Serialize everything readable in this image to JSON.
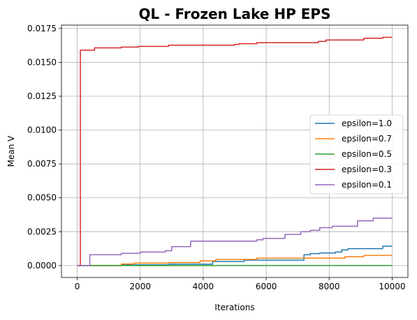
{
  "chart_data": {
    "type": "line",
    "step": true,
    "title": "QL - Frozen Lake HP EPS",
    "xlabel": "Iterations",
    "ylabel": "Mean V",
    "xlim": [
      -500,
      10500
    ],
    "ylim": [
      -0.00088,
      0.01775
    ],
    "xticks": [
      0,
      2000,
      4000,
      6000,
      8000,
      10000
    ],
    "xtick_labels": [
      "0",
      "2000",
      "4000",
      "6000",
      "8000",
      "10000"
    ],
    "yticks": [
      0.0,
      0.0025,
      0.005,
      0.0075,
      0.01,
      0.0125,
      0.015,
      0.0175
    ],
    "ytick_labels": [
      "0.0000",
      "0.0025",
      "0.0050",
      "0.0075",
      "0.0100",
      "0.0125",
      "0.0150",
      "0.0175"
    ],
    "grid": true,
    "legend_position": "center-right",
    "series": [
      {
        "name": "epsilon=1.0",
        "color": "#1f77b4",
        "points": [
          [
            0,
            0
          ],
          [
            1400,
            0
          ],
          [
            1400,
            5e-05
          ],
          [
            2900,
            5e-05
          ],
          [
            2900,
            0.0001
          ],
          [
            4300,
            0.0001
          ],
          [
            4300,
            0.0003
          ],
          [
            5300,
            0.0003
          ],
          [
            5300,
            0.0004
          ],
          [
            7200,
            0.0004
          ],
          [
            7200,
            0.0008
          ],
          [
            7400,
            0.0008
          ],
          [
            7400,
            0.00088
          ],
          [
            7700,
            0.00088
          ],
          [
            7700,
            0.00093
          ],
          [
            8200,
            0.00093
          ],
          [
            8200,
            0.001
          ],
          [
            8400,
            0.001
          ],
          [
            8400,
            0.00115
          ],
          [
            8600,
            0.00115
          ],
          [
            8600,
            0.00125
          ],
          [
            9700,
            0.00125
          ],
          [
            9700,
            0.00143
          ],
          [
            10000,
            0.00143
          ]
        ]
      },
      {
        "name": "epsilon=0.7",
        "color": "#ff7f0e",
        "points": [
          [
            0,
            0
          ],
          [
            1400,
            0
          ],
          [
            1400,
            0.00012
          ],
          [
            1800,
            0.00012
          ],
          [
            1800,
            0.00018
          ],
          [
            2900,
            0.00018
          ],
          [
            2900,
            0.00022
          ],
          [
            3900,
            0.00022
          ],
          [
            3900,
            0.00035
          ],
          [
            4400,
            0.00035
          ],
          [
            4400,
            0.00045
          ],
          [
            5700,
            0.00045
          ],
          [
            5700,
            0.00055
          ],
          [
            8500,
            0.00055
          ],
          [
            8500,
            0.00065
          ],
          [
            9100,
            0.00065
          ],
          [
            9100,
            0.00075
          ],
          [
            10000,
            0.00075
          ]
        ]
      },
      {
        "name": "epsilon=0.5",
        "color": "#2ca02c",
        "points": [
          [
            0,
            0
          ],
          [
            10000,
            0
          ]
        ]
      },
      {
        "name": "epsilon=0.3",
        "color": "#d62728",
        "points": [
          [
            0,
            0
          ],
          [
            100,
            0
          ],
          [
            100,
            0.0159
          ],
          [
            550,
            0.0159
          ],
          [
            550,
            0.01607
          ],
          [
            1400,
            0.01607
          ],
          [
            1400,
            0.01613
          ],
          [
            1950,
            0.01613
          ],
          [
            1950,
            0.01618
          ],
          [
            2900,
            0.01618
          ],
          [
            2900,
            0.01627
          ],
          [
            5000,
            0.01627
          ],
          [
            5000,
            0.01633
          ],
          [
            5150,
            0.01633
          ],
          [
            5150,
            0.01638
          ],
          [
            5700,
            0.01638
          ],
          [
            5700,
            0.01645
          ],
          [
            7650,
            0.01645
          ],
          [
            7650,
            0.01655
          ],
          [
            7900,
            0.01655
          ],
          [
            7900,
            0.01665
          ],
          [
            9100,
            0.01665
          ],
          [
            9100,
            0.01678
          ],
          [
            9700,
            0.01678
          ],
          [
            9700,
            0.01685
          ],
          [
            10000,
            0.01685
          ]
        ]
      },
      {
        "name": "epsilon=0.1",
        "color": "#9467bd",
        "points": [
          [
            0,
            0
          ],
          [
            400,
            0
          ],
          [
            400,
            0.0008
          ],
          [
            1400,
            0.0008
          ],
          [
            1400,
            0.0009
          ],
          [
            2000,
            0.0009
          ],
          [
            2000,
            0.001
          ],
          [
            2800,
            0.001
          ],
          [
            2800,
            0.0011
          ],
          [
            3000,
            0.0011
          ],
          [
            3000,
            0.0014
          ],
          [
            3600,
            0.0014
          ],
          [
            3600,
            0.0018
          ],
          [
            5700,
            0.0018
          ],
          [
            5700,
            0.0019
          ],
          [
            5900,
            0.0019
          ],
          [
            5900,
            0.002
          ],
          [
            6600,
            0.002
          ],
          [
            6600,
            0.0023
          ],
          [
            7100,
            0.0023
          ],
          [
            7100,
            0.0025
          ],
          [
            7400,
            0.0025
          ],
          [
            7400,
            0.0026
          ],
          [
            7700,
            0.0026
          ],
          [
            7700,
            0.0028
          ],
          [
            8100,
            0.0028
          ],
          [
            8100,
            0.0029
          ],
          [
            8900,
            0.0029
          ],
          [
            8900,
            0.0033
          ],
          [
            9400,
            0.0033
          ],
          [
            9400,
            0.0035
          ],
          [
            10000,
            0.0035
          ]
        ]
      }
    ]
  }
}
